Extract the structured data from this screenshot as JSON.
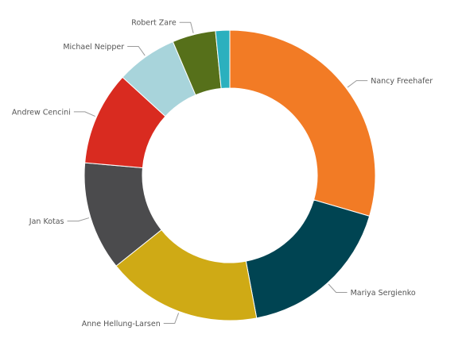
{
  "chart_data": {
    "type": "pie",
    "donut": true,
    "title": "",
    "legend": "none",
    "slices": [
      {
        "label": "Nancy Freehafer",
        "value": 30.0,
        "color": "#F27B25"
      },
      {
        "label": "Mariya Sergienko",
        "value": 17.8,
        "color": "#004452"
      },
      {
        "label": "Anne Hellung-Larsen",
        "value": 17.5,
        "color": "#CFAA15"
      },
      {
        "label": "Jan Kotas",
        "value": 12.3,
        "color": "#4B4B4D"
      },
      {
        "label": "Andrew Cencini",
        "value": 10.6,
        "color": "#D92B20"
      },
      {
        "label": "Michael Neipper",
        "value": 6.9,
        "color": "#A8D4DB"
      },
      {
        "label": "Robert Zare",
        "value": 4.9,
        "color": "#56701A"
      },
      {
        "label": "",
        "value": 1.6,
        "color": "#2BB0BE"
      }
    ]
  }
}
